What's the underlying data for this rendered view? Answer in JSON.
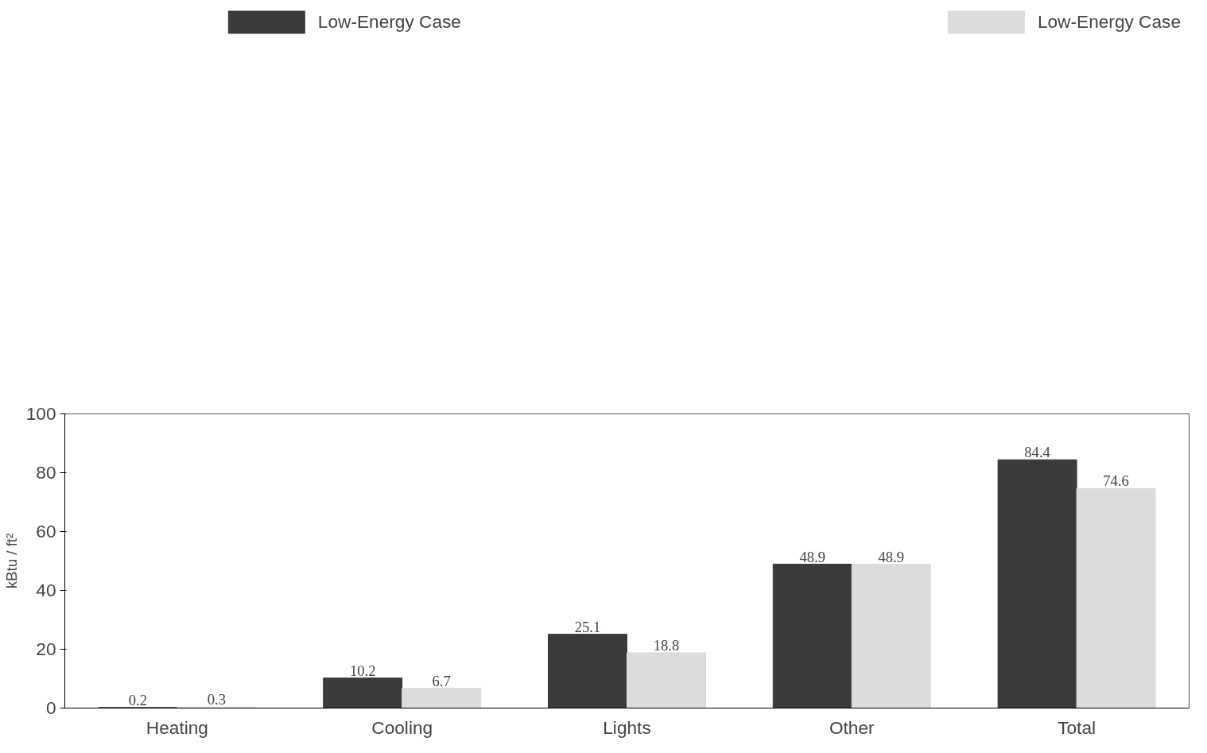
{
  "chart_data": {
    "type": "bar",
    "ylabel": "kBtu / ft²",
    "categories": [
      "Heating",
      "Cooling",
      "Lights",
      "Other",
      "Total"
    ],
    "series": [
      {
        "name": "Low-Energy Case",
        "color": "#3a3a3a",
        "values": [
          0.2,
          10.2,
          25.1,
          48.9,
          84.4
        ]
      },
      {
        "name": "Low-Energy Case",
        "color": "#dcdcdc",
        "values": [
          0.3,
          6.7,
          18.8,
          48.9,
          74.6
        ]
      }
    ],
    "ylim": [
      0,
      100
    ],
    "yticks": [
      0,
      20,
      40,
      60,
      80,
      100
    ],
    "grid": false,
    "legend": "top",
    "data_labels": true
  }
}
